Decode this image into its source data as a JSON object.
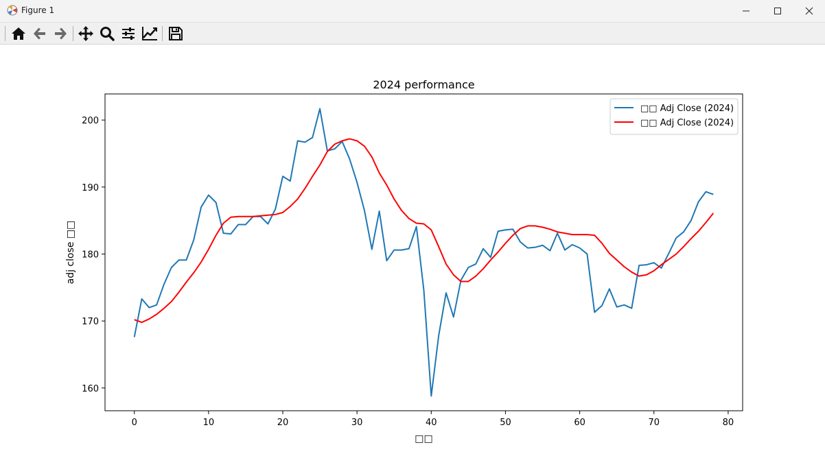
{
  "window": {
    "title": "Figure 1",
    "icons": {
      "app": "matplotlib-icon",
      "minimize": "minimize-icon",
      "maximize": "maximize-icon",
      "close": "close-icon"
    }
  },
  "toolbar": {
    "buttons": [
      "home-icon",
      "back-arrow-icon",
      "forward-arrow-icon",
      "pan-move-icon",
      "zoom-magnifier-icon",
      "configure-subplots-icon",
      "edit-axis-icon",
      "save-floppy-icon"
    ]
  },
  "chart_data": {
    "type": "line",
    "title": "2024 performance",
    "xlabel": "□□",
    "ylabel": "adj close □□",
    "xlim": [
      -3.95,
      81.95
    ],
    "ylim": [
      156.6,
      203.9
    ],
    "xticks": [
      0,
      10,
      20,
      30,
      40,
      50,
      60,
      70,
      80
    ],
    "yticks": [
      160,
      170,
      180,
      190,
      200
    ],
    "grid": false,
    "legend": "top-right",
    "series": [
      {
        "name": "□□ Adj Close (2024)",
        "color": "#1f77b4",
        "x": [
          0,
          1,
          2,
          3,
          4,
          5,
          6,
          7,
          8,
          9,
          10,
          11,
          12,
          13,
          14,
          15,
          16,
          17,
          18,
          19,
          20,
          21,
          22,
          23,
          24,
          25,
          26,
          27,
          28,
          29,
          30,
          31,
          32,
          33,
          34,
          35,
          36,
          37,
          38,
          39,
          40,
          41,
          42,
          43,
          44,
          45,
          46,
          47,
          48,
          49,
          50,
          51,
          52,
          53,
          54,
          55,
          56,
          57,
          58,
          59,
          60,
          61,
          62,
          63,
          64,
          65,
          66,
          67,
          68,
          69,
          70,
          71,
          72,
          73,
          74,
          75,
          76,
          77,
          78
        ],
        "y": [
          167.6,
          173.3,
          172.0,
          172.4,
          175.5,
          178.0,
          179.1,
          179.1,
          182.1,
          187.0,
          188.8,
          187.7,
          183.1,
          183.0,
          184.4,
          184.4,
          185.6,
          185.6,
          184.5,
          186.7,
          191.6,
          190.9,
          196.9,
          196.7,
          197.4,
          201.7,
          195.4,
          195.7,
          196.8,
          194.2,
          190.7,
          186.5,
          180.7,
          186.4,
          179.0,
          180.6,
          180.6,
          180.8,
          184.1,
          174.6,
          158.8,
          167.8,
          174.2,
          170.6,
          176.1,
          178.0,
          178.5,
          180.8,
          179.5,
          183.4,
          183.6,
          183.7,
          181.8,
          180.9,
          181.0,
          181.3,
          180.5,
          183.1,
          180.6,
          181.4,
          180.9,
          180.0,
          171.3,
          172.3,
          174.8,
          172.1,
          172.4,
          171.9,
          178.3,
          178.4,
          178.7,
          177.9,
          180.1,
          182.4,
          183.3,
          185.0,
          187.8,
          189.3,
          188.9
        ]
      },
      {
        "name": "□□ Adj Close (2024)",
        "color": "#ff0000",
        "x": [
          0,
          1,
          2,
          3,
          4,
          5,
          6,
          7,
          8,
          9,
          10,
          11,
          12,
          13,
          14,
          15,
          16,
          17,
          18,
          19,
          20,
          21,
          22,
          23,
          24,
          25,
          26,
          27,
          28,
          29,
          30,
          31,
          32,
          33,
          34,
          35,
          36,
          37,
          38,
          39,
          40,
          41,
          42,
          43,
          44,
          45,
          46,
          47,
          48,
          49,
          50,
          51,
          52,
          53,
          54,
          55,
          56,
          57,
          58,
          59,
          60,
          61,
          62,
          63,
          64,
          65,
          66,
          67,
          68,
          69,
          70,
          71,
          72,
          73,
          74,
          75,
          76,
          77,
          78
        ],
        "y": [
          170.2,
          169.8,
          170.3,
          171.0,
          171.9,
          172.9,
          174.3,
          175.8,
          177.2,
          178.8,
          180.7,
          182.8,
          184.6,
          185.5,
          185.6,
          185.6,
          185.6,
          185.7,
          185.8,
          185.9,
          186.2,
          187.1,
          188.2,
          189.8,
          191.6,
          193.3,
          195.3,
          196.4,
          196.9,
          197.2,
          196.9,
          196.1,
          194.5,
          192.1,
          190.3,
          188.2,
          186.5,
          185.3,
          184.6,
          184.5,
          183.6,
          181.1,
          178.5,
          176.9,
          175.9,
          175.9,
          176.7,
          177.8,
          179.1,
          180.3,
          181.6,
          182.8,
          183.8,
          184.2,
          184.2,
          184.0,
          183.7,
          183.3,
          183.1,
          182.9,
          182.9,
          182.9,
          182.8,
          181.6,
          180.1,
          179.1,
          178.1,
          177.3,
          176.7,
          176.9,
          177.5,
          178.4,
          179.2,
          180.0,
          181.1,
          182.3,
          183.4,
          184.7,
          186.1
        ]
      }
    ]
  }
}
